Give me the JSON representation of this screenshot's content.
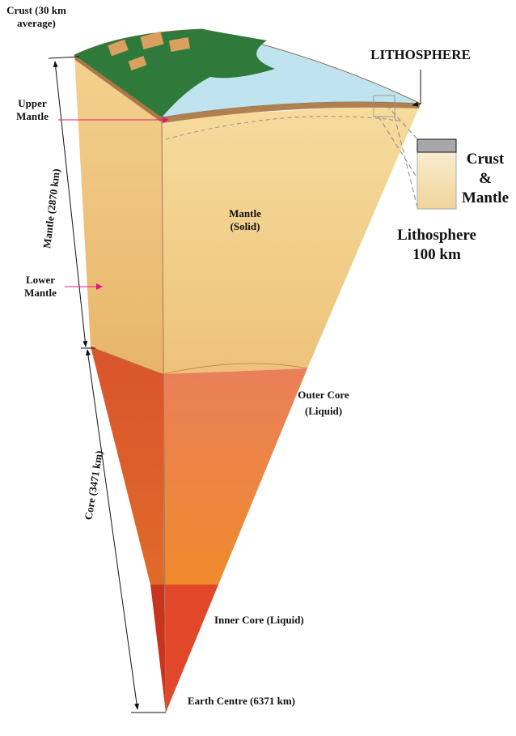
{
  "labels": {
    "crust": [
      "Crust (30 km",
      "average)"
    ],
    "lithosphere_title": "LITHOSPHERE",
    "upper_mantle": [
      "Upper",
      "Mantle"
    ],
    "mantle_depth": "Mantle (2870 km)",
    "mantle_solid": [
      "Mantle",
      "(Solid)"
    ],
    "lower_mantle": [
      "Lower",
      "Mantle"
    ],
    "inset": [
      "Crust",
      "&",
      "Mantle"
    ],
    "lithosphere_depth": [
      "Lithosphere",
      "100 km"
    ],
    "outer_core": [
      "Outer Core",
      "(Liquid)"
    ],
    "core_depth": "Core (3471 km)",
    "inner_core": "Inner Core (Liquid)",
    "centre": "Earth Centre (6371 km)"
  }
}
